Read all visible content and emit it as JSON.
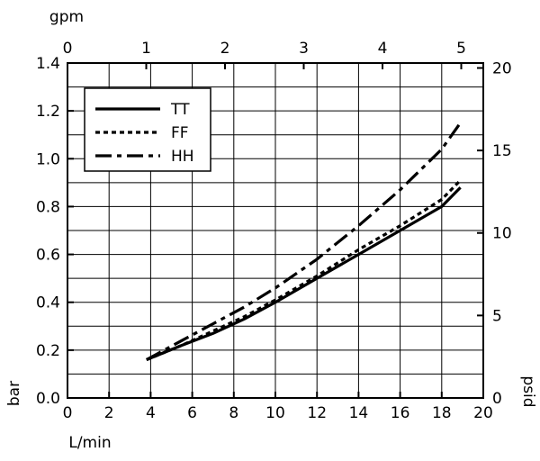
{
  "chart_data": {
    "type": "line",
    "top_axis_label": "gpm",
    "top_axis_ticks": [
      "0",
      "1",
      "2",
      "3",
      "4",
      "5"
    ],
    "top_axis_range": [
      0,
      5.28
    ],
    "xlabel": "L/min",
    "x_ticks": [
      "0",
      "2",
      "4",
      "6",
      "8",
      "10",
      "12",
      "14",
      "16",
      "18",
      "20"
    ],
    "xlim": [
      0,
      20
    ],
    "ylabel": "bar",
    "y_ticks": [
      "0.0",
      "0.2",
      "0.4",
      "0.6",
      "0.8",
      "1.0",
      "1.2",
      "1.4"
    ],
    "ylim": [
      0,
      1.4
    ],
    "right_axis_label": "psid",
    "right_axis_ticks": [
      "0",
      "5",
      "10",
      "15",
      "20"
    ],
    "right_axis_range": [
      0,
      20.3
    ],
    "grid": true,
    "legend_position": "top-left",
    "series": [
      {
        "name": "TT",
        "style": "solid",
        "x": [
          3.8,
          5.5,
          7,
          8.5,
          10,
          12,
          14,
          16,
          18,
          18.9
        ],
        "y": [
          0.16,
          0.22,
          0.27,
          0.33,
          0.4,
          0.5,
          0.6,
          0.7,
          0.8,
          0.88
        ]
      },
      {
        "name": "FF",
        "style": "dotted",
        "x": [
          3.8,
          5.5,
          7,
          8.5,
          10,
          12,
          14,
          16,
          18,
          18.9
        ],
        "y": [
          0.16,
          0.22,
          0.28,
          0.34,
          0.41,
          0.51,
          0.62,
          0.72,
          0.83,
          0.91
        ]
      },
      {
        "name": "HH",
        "style": "dash-dot",
        "x": [
          3.8,
          5.5,
          7,
          8.5,
          10,
          12,
          14,
          16,
          18,
          18.9
        ],
        "y": [
          0.16,
          0.24,
          0.31,
          0.38,
          0.46,
          0.58,
          0.72,
          0.87,
          1.04,
          1.15
        ]
      }
    ]
  }
}
